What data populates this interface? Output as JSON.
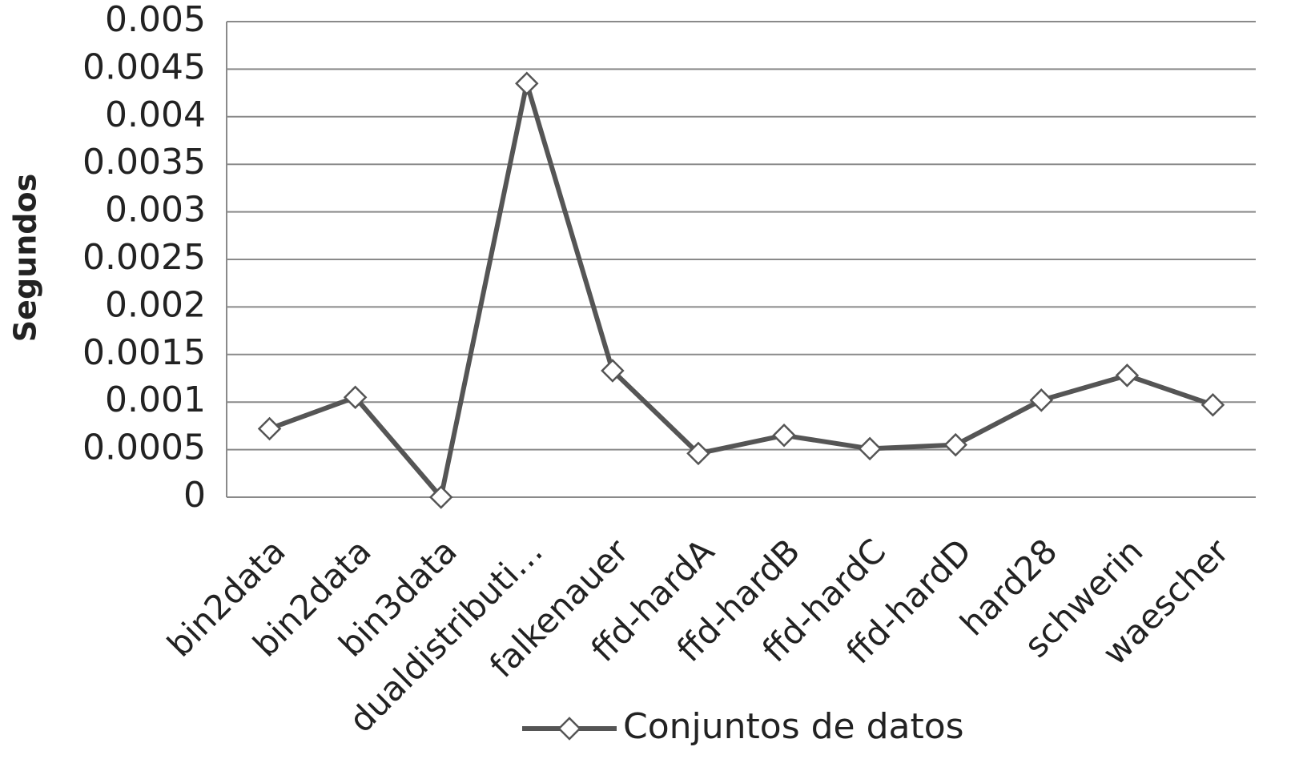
{
  "chart_data": {
    "type": "line",
    "y_axis_label": "Segundos",
    "categories": [
      "bin2data",
      "bin2data",
      "bin3data",
      "dualdistributi…",
      "falkenauer",
      "ffd-hardA",
      "ffd-hardB",
      "ffd-hardC",
      "ffd-hardD",
      "hard28",
      "schwerin",
      "waescher"
    ],
    "series": [
      {
        "name": "Conjuntos de datos",
        "color": "#555555",
        "values": [
          0.00072,
          0.00105,
          0,
          0.00435,
          0.00133,
          0.00046,
          0.00065,
          0.00051,
          0.00055,
          0.00102,
          0.00128,
          0.00097
        ]
      }
    ],
    "ylim": [
      0,
      0.005
    ],
    "yticks": [
      0,
      0.0005,
      0.001,
      0.0015,
      0.002,
      0.0025,
      0.003,
      0.0035,
      0.004,
      0.0045,
      0.005
    ],
    "grid": true,
    "legend": "bottom",
    "marker": "diamond"
  }
}
